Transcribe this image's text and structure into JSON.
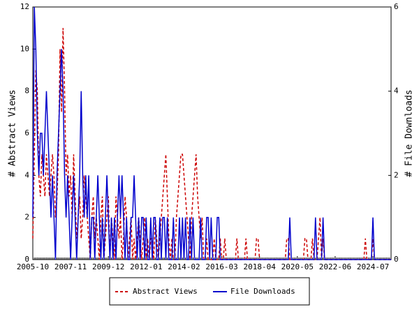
{
  "chart_data": {
    "type": "line",
    "ylabel": "# Abstract Views",
    "y2label": "# File Downloads",
    "categories": [
      "2005-10",
      null,
      null,
      null,
      null,
      null,
      null,
      null,
      null,
      null,
      null,
      null,
      null,
      null,
      null,
      null,
      null,
      null,
      null,
      null,
      null,
      null,
      null,
      null,
      null,
      "2007-11",
      null,
      null,
      null,
      null,
      null,
      null,
      null,
      null,
      null,
      null,
      null,
      null,
      null,
      null,
      null,
      null,
      null,
      null,
      null,
      null,
      null,
      null,
      null,
      null,
      "2009-12",
      null,
      null,
      null,
      null,
      null,
      null,
      null,
      null,
      null,
      null,
      null,
      null,
      null,
      null,
      null,
      null,
      null,
      null,
      null,
      null,
      null,
      null,
      null,
      null,
      "2012-01",
      null,
      null,
      null,
      null,
      null,
      null,
      null,
      null,
      null,
      null,
      null,
      null,
      null,
      null,
      null,
      null,
      null,
      null,
      null,
      null,
      null,
      null,
      null,
      null,
      "2014-02",
      null,
      null,
      null,
      null,
      null,
      null,
      null,
      null,
      null,
      null,
      null,
      null,
      null,
      null,
      null,
      null,
      null,
      null,
      null,
      null,
      null,
      null,
      null,
      null,
      "2016-03",
      null,
      null,
      null,
      null,
      null,
      null,
      null,
      null,
      null,
      null,
      null,
      null,
      null,
      null,
      null,
      null,
      null,
      null,
      null,
      null,
      null,
      null,
      null,
      null,
      "2018-04",
      null,
      null,
      null,
      null,
      null,
      null,
      null,
      null,
      null,
      null,
      null,
      null,
      null,
      null,
      null,
      null,
      null,
      null,
      null,
      null,
      null,
      null,
      null,
      null,
      "2020-05",
      null,
      null,
      null,
      null,
      null,
      null,
      null,
      null,
      null,
      null,
      null,
      null,
      null,
      null,
      null,
      null,
      null,
      null,
      null,
      null,
      null,
      null,
      null,
      null,
      "2022-06",
      null,
      null,
      null,
      null,
      null,
      null,
      null,
      null,
      null,
      null,
      null,
      null,
      null,
      null,
      null,
      null,
      null,
      null,
      null,
      null,
      null,
      null,
      null,
      null,
      "2024-07",
      null,
      null,
      null,
      null,
      null,
      null,
      null,
      null,
      null,
      null,
      null,
      null
    ],
    "series": [
      {
        "name": "Abstract Views",
        "color": "#cc0000",
        "dash": true,
        "values": [
          1,
          5,
          9,
          8,
          4,
          3,
          5,
          4,
          3,
          5,
          4,
          3,
          4,
          5,
          4,
          2,
          3,
          5,
          10,
          7,
          11,
          8,
          4,
          5,
          3,
          4,
          2,
          5,
          3,
          1,
          2,
          3,
          1,
          2,
          4,
          3,
          2,
          1,
          0,
          2,
          3,
          1,
          2,
          1,
          0,
          2,
          3,
          0,
          1,
          2,
          3,
          0,
          2,
          1,
          0,
          3,
          2,
          1,
          2,
          0,
          1,
          3,
          2,
          0,
          1,
          2,
          0,
          1,
          0,
          1,
          2,
          1,
          0,
          1,
          2,
          0,
          1,
          0,
          1,
          1,
          0,
          2,
          1,
          0,
          1,
          2,
          3,
          4,
          5,
          3,
          1,
          0,
          1,
          0,
          0,
          2,
          3,
          4,
          5,
          5,
          4,
          3,
          2,
          1,
          0,
          2,
          3,
          4,
          5,
          3,
          2,
          1,
          2,
          0,
          0,
          1,
          0,
          0,
          0,
          0,
          1,
          0,
          0,
          0,
          1,
          0,
          0,
          1,
          0,
          0,
          0,
          0,
          0,
          0,
          0,
          1,
          0,
          0,
          0,
          0,
          0,
          1,
          0,
          0,
          0,
          0,
          0,
          0,
          1,
          1,
          0,
          0,
          0,
          0,
          0,
          0,
          0,
          0,
          0,
          0,
          0,
          0,
          0,
          0,
          0,
          0,
          0,
          0,
          1,
          1,
          0,
          0,
          0,
          0,
          0,
          0,
          0,
          0,
          0,
          0,
          1,
          1,
          0,
          0,
          0,
          1,
          0,
          0,
          0,
          1,
          2,
          0,
          1,
          0,
          0,
          0,
          0,
          0,
          0,
          0,
          0,
          0,
          0,
          0,
          0,
          0,
          0,
          0,
          0,
          0,
          0,
          0,
          0,
          0,
          0,
          0,
          0,
          0,
          0,
          0,
          1,
          0,
          0,
          0,
          0,
          1,
          0,
          0,
          0,
          0,
          0,
          0,
          0,
          0,
          0,
          0,
          0,
          0
        ]
      },
      {
        "name": "File Downloads",
        "color": "#0000cc",
        "dash": false,
        "axis": "y2",
        "values": [
          1,
          6,
          5,
          3,
          2,
          3,
          3,
          2,
          3,
          4,
          3,
          2,
          1,
          2,
          1,
          0,
          2,
          3,
          4,
          5,
          4,
          2,
          1,
          2,
          1,
          0,
          1,
          2,
          1,
          0,
          1,
          2,
          4,
          2,
          1,
          2,
          1,
          2,
          0,
          1,
          1,
          0,
          1,
          2,
          1,
          0,
          1,
          0,
          1,
          2,
          1,
          0,
          1,
          0,
          1,
          0,
          1,
          2,
          1,
          2,
          1,
          0,
          1,
          0,
          0,
          1,
          1,
          2,
          1,
          0,
          1,
          0,
          1,
          1,
          0,
          1,
          0,
          0,
          1,
          0,
          1,
          1,
          0,
          0,
          1,
          0,
          1,
          1,
          0,
          1,
          0,
          0,
          0,
          1,
          0,
          0,
          0,
          1,
          0,
          1,
          0,
          1,
          0,
          0,
          1,
          0,
          1,
          0,
          0,
          0,
          0,
          1,
          0,
          0,
          0,
          1,
          1,
          0,
          1,
          0,
          0,
          0,
          1,
          1,
          0,
          0,
          0,
          0,
          0,
          0,
          0,
          0,
          0,
          0,
          0,
          0,
          0,
          0,
          0,
          0,
          0,
          0,
          0,
          0,
          0,
          0,
          0,
          0,
          0,
          0,
          0,
          0,
          0,
          0,
          0,
          0,
          0,
          0,
          0,
          0,
          0,
          0,
          0,
          0,
          0,
          0,
          0,
          0,
          0,
          0,
          1,
          0,
          0,
          0,
          0,
          0,
          0,
          0,
          0,
          0,
          0,
          0,
          0,
          0,
          0,
          0,
          0,
          1,
          0,
          0,
          0,
          0,
          1,
          0,
          0,
          0,
          0,
          0,
          0,
          0,
          0,
          0,
          0,
          0,
          0,
          0,
          0,
          0,
          0,
          0,
          0,
          0,
          0,
          0,
          0,
          0,
          0,
          0,
          0,
          0,
          0,
          0,
          0,
          0,
          0,
          1,
          0,
          0,
          0,
          0,
          0,
          0,
          0,
          0,
          0,
          0,
          0,
          0
        ]
      }
    ],
    "ylim": [
      0,
      12
    ],
    "yticks": [
      0,
      2,
      4,
      6,
      8,
      10,
      12
    ],
    "y2lim": [
      0,
      6
    ],
    "y2ticks": [
      0,
      2,
      4,
      6
    ],
    "legend": "bottom"
  }
}
